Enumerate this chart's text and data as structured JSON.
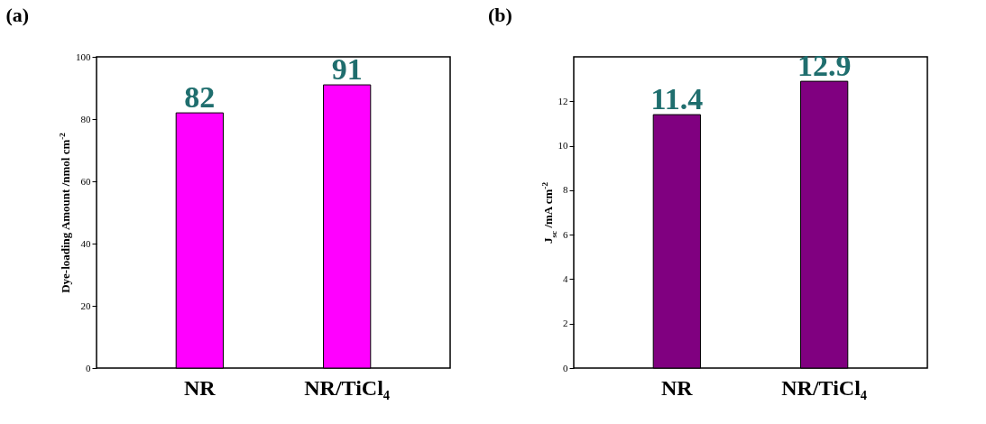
{
  "chart_data": [
    {
      "type": "bar",
      "title": "(a)",
      "categories": [
        "NR",
        "NR/TiCl₄"
      ],
      "values": [
        82,
        91
      ],
      "color": "#ff00ff",
      "ylabel": "Dye-loading Amount /nmol cm$^{-2}$",
      "ylim": [
        0,
        100
      ],
      "yticks": [
        0,
        20,
        40,
        60,
        80,
        100
      ],
      "data_labels": true,
      "grid": false
    },
    {
      "type": "bar",
      "title": "(b)",
      "categories": [
        "NR",
        "NR/TiCl₄"
      ],
      "values": [
        11.4,
        12.9
      ],
      "color": "#800080",
      "ylabel": "J$_{sc}$ /mA cm$^{-2}$",
      "ylim": [
        0,
        14
      ],
      "yticks": [
        0,
        2,
        4,
        6,
        8,
        10,
        12
      ],
      "data_labels": true,
      "grid": false
    }
  ]
}
